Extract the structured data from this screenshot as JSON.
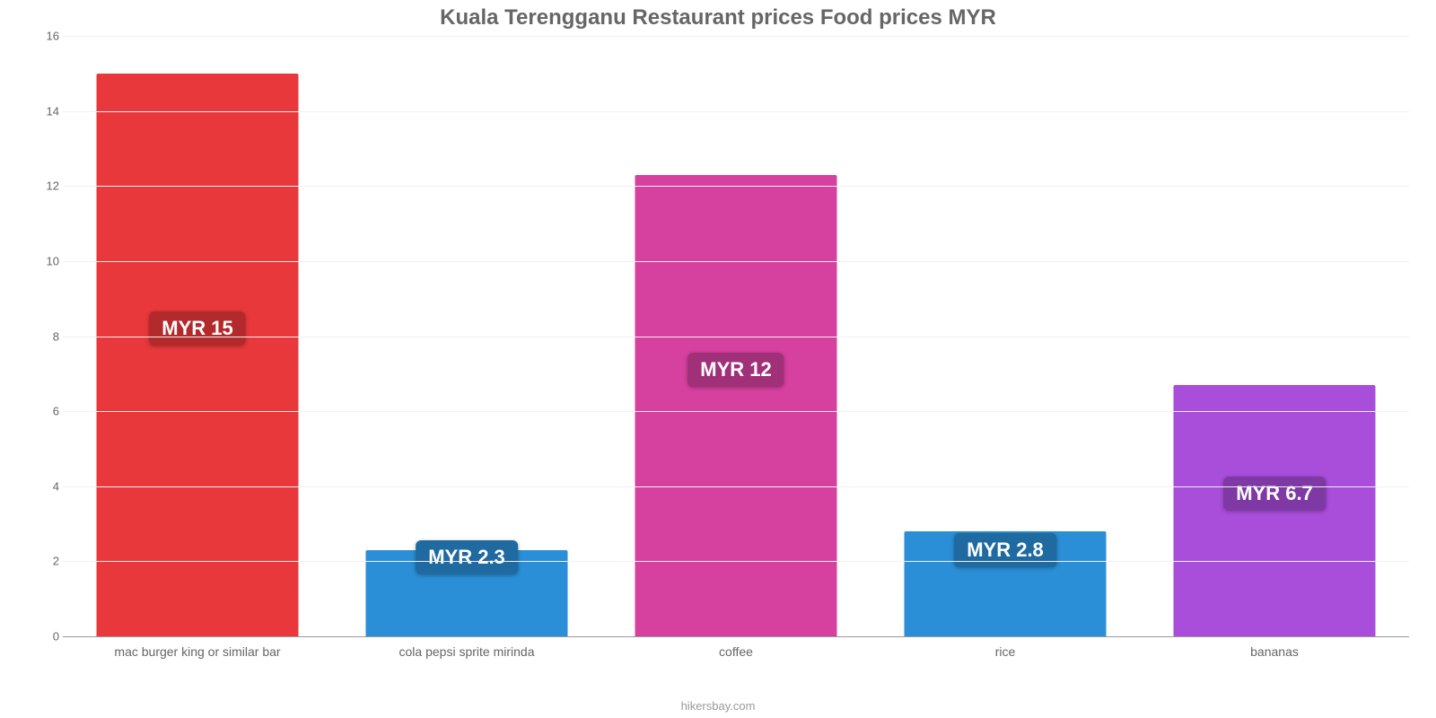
{
  "chart": {
    "type": "bar",
    "title": "Kuala Terengganu Restaurant prices Food prices MYR",
    "title_color": "#666666",
    "title_fontsize": 24,
    "background_color": "#ffffff",
    "grid_color": "#f0f0f0",
    "axis_color": "#999999",
    "tick_label_color": "#666666",
    "tick_fontsize": 13,
    "xtick_fontsize": 14,
    "ylim_min": 0,
    "ylim_max": 16,
    "ytick_step": 2,
    "yticks": [
      0,
      2,
      4,
      6,
      8,
      10,
      12,
      14,
      16
    ],
    "bar_width_pct": 75,
    "badge_fontsize": 22,
    "badge_text_color": "#ffffff",
    "categories": [
      "mac burger king or similar bar",
      "cola pepsi sprite mirinda",
      "coffee",
      "rice",
      "bananas"
    ],
    "values": [
      15,
      2.3,
      12.3,
      2.8,
      6.7
    ],
    "value_labels": [
      "MYR 15",
      "MYR 2.3",
      "MYR 12",
      "MYR 2.8",
      "MYR 6.7"
    ],
    "bar_colors": [
      "#e8383b",
      "#2a8fd6",
      "#d6409f",
      "#2a8fd6",
      "#a94ddb"
    ],
    "badge_colors": [
      "#b22a2c",
      "#1f6aa0",
      "#a03078",
      "#1f6aa0",
      "#7e39a5"
    ],
    "badge_y_values": [
      8.2,
      2.1,
      7.1,
      2.3,
      3.8
    ],
    "attribution": "hikersbay.com",
    "attribution_color": "#999999",
    "attribution_fontsize": 13
  }
}
